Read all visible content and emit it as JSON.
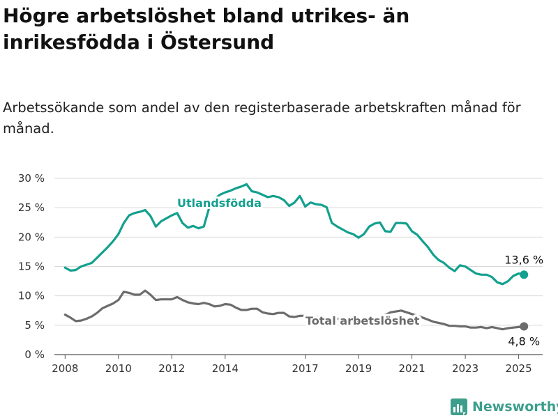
{
  "header": {
    "title": "Högre arbetslöshet bland utrikes- än inrikesfödda i Östersund",
    "subtitle": "Arbetssökande som andel av den registerbaserade arbetskraften månad för månad."
  },
  "brand": {
    "name": "Newsworthy",
    "icon": "newsworthy-logo-icon",
    "color": "#3d9e8c"
  },
  "chart_data": {
    "type": "line",
    "xlim": [
      2007.6,
      2025.9
    ],
    "ylim": [
      0,
      30
    ],
    "x_ticks": [
      2008,
      2010,
      2012,
      2014,
      2017,
      2019,
      2021,
      2023,
      2025
    ],
    "y_ticks": [
      {
        "value": 0,
        "label": "0 %"
      },
      {
        "value": 5,
        "label": "5 %"
      },
      {
        "value": 10,
        "label": "10 %"
      },
      {
        "value": 15,
        "label": "15 %"
      },
      {
        "value": 20,
        "label": "20 %"
      },
      {
        "value": 25,
        "label": "25 %"
      },
      {
        "value": 30,
        "label": "30 %"
      }
    ],
    "grid": "horizontal",
    "series": [
      {
        "name": "Utlandsfödda",
        "color": "#13a08e",
        "end_label": "13,6 %",
        "points": [
          [
            2008.0,
            14.8
          ],
          [
            2008.2,
            14.3
          ],
          [
            2008.4,
            14.4
          ],
          [
            2008.6,
            15.0
          ],
          [
            2008.8,
            15.3
          ],
          [
            2009.0,
            15.6
          ],
          [
            2009.2,
            16.5
          ],
          [
            2009.4,
            17.4
          ],
          [
            2009.6,
            18.3
          ],
          [
            2009.8,
            19.3
          ],
          [
            2010.0,
            20.5
          ],
          [
            2010.2,
            22.4
          ],
          [
            2010.4,
            23.7
          ],
          [
            2010.6,
            24.1
          ],
          [
            2010.8,
            24.3
          ],
          [
            2011.0,
            24.6
          ],
          [
            2011.2,
            23.6
          ],
          [
            2011.4,
            21.8
          ],
          [
            2011.6,
            22.7
          ],
          [
            2011.8,
            23.2
          ],
          [
            2012.0,
            23.7
          ],
          [
            2012.2,
            24.1
          ],
          [
            2012.4,
            22.4
          ],
          [
            2012.6,
            21.6
          ],
          [
            2012.8,
            21.9
          ],
          [
            2013.0,
            21.5
          ],
          [
            2013.2,
            21.8
          ],
          [
            2013.4,
            25.0
          ],
          [
            2013.6,
            26.5
          ],
          [
            2013.8,
            27.2
          ],
          [
            2014.0,
            27.6
          ],
          [
            2014.2,
            27.9
          ],
          [
            2014.4,
            28.3
          ],
          [
            2014.6,
            28.6
          ],
          [
            2014.8,
            29.0
          ],
          [
            2015.0,
            27.8
          ],
          [
            2015.2,
            27.6
          ],
          [
            2015.4,
            27.2
          ],
          [
            2015.6,
            26.8
          ],
          [
            2015.8,
            27.0
          ],
          [
            2016.0,
            26.8
          ],
          [
            2016.2,
            26.3
          ],
          [
            2016.4,
            25.3
          ],
          [
            2016.6,
            25.9
          ],
          [
            2016.8,
            27.0
          ],
          [
            2017.0,
            25.2
          ],
          [
            2017.2,
            25.9
          ],
          [
            2017.4,
            25.6
          ],
          [
            2017.6,
            25.5
          ],
          [
            2017.8,
            25.1
          ],
          [
            2018.0,
            22.4
          ],
          [
            2018.2,
            21.8
          ],
          [
            2018.4,
            21.3
          ],
          [
            2018.6,
            20.8
          ],
          [
            2018.8,
            20.5
          ],
          [
            2019.0,
            19.9
          ],
          [
            2019.2,
            20.5
          ],
          [
            2019.4,
            21.8
          ],
          [
            2019.6,
            22.3
          ],
          [
            2019.8,
            22.5
          ],
          [
            2020.0,
            21.0
          ],
          [
            2020.2,
            20.9
          ],
          [
            2020.4,
            22.4
          ],
          [
            2020.6,
            22.4
          ],
          [
            2020.8,
            22.3
          ],
          [
            2021.0,
            21.0
          ],
          [
            2021.2,
            20.4
          ],
          [
            2021.4,
            19.3
          ],
          [
            2021.6,
            18.3
          ],
          [
            2021.8,
            17.0
          ],
          [
            2022.0,
            16.1
          ],
          [
            2022.2,
            15.6
          ],
          [
            2022.4,
            14.8
          ],
          [
            2022.6,
            14.2
          ],
          [
            2022.8,
            15.2
          ],
          [
            2023.0,
            15.0
          ],
          [
            2023.2,
            14.4
          ],
          [
            2023.4,
            13.8
          ],
          [
            2023.6,
            13.6
          ],
          [
            2023.8,
            13.6
          ],
          [
            2024.0,
            13.2
          ],
          [
            2024.2,
            12.3
          ],
          [
            2024.4,
            12.0
          ],
          [
            2024.6,
            12.5
          ],
          [
            2024.8,
            13.4
          ],
          [
            2025.0,
            13.8
          ],
          [
            2025.2,
            13.6
          ]
        ]
      },
      {
        "name": "Total arbetslöshet",
        "color": "#6c6c6c",
        "end_label": "4,8 %",
        "points": [
          [
            2008.0,
            6.8
          ],
          [
            2008.2,
            6.3
          ],
          [
            2008.4,
            5.7
          ],
          [
            2008.6,
            5.8
          ],
          [
            2008.8,
            6.1
          ],
          [
            2009.0,
            6.5
          ],
          [
            2009.2,
            7.1
          ],
          [
            2009.4,
            7.9
          ],
          [
            2009.6,
            8.3
          ],
          [
            2009.8,
            8.7
          ],
          [
            2010.0,
            9.3
          ],
          [
            2010.2,
            10.7
          ],
          [
            2010.4,
            10.5
          ],
          [
            2010.6,
            10.2
          ],
          [
            2010.8,
            10.2
          ],
          [
            2011.0,
            10.9
          ],
          [
            2011.2,
            10.2
          ],
          [
            2011.4,
            9.3
          ],
          [
            2011.6,
            9.4
          ],
          [
            2011.8,
            9.4
          ],
          [
            2012.0,
            9.4
          ],
          [
            2012.2,
            9.8
          ],
          [
            2012.4,
            9.3
          ],
          [
            2012.6,
            8.9
          ],
          [
            2012.8,
            8.7
          ],
          [
            2013.0,
            8.6
          ],
          [
            2013.2,
            8.8
          ],
          [
            2013.4,
            8.6
          ],
          [
            2013.6,
            8.2
          ],
          [
            2013.8,
            8.3
          ],
          [
            2014.0,
            8.6
          ],
          [
            2014.2,
            8.5
          ],
          [
            2014.4,
            8.0
          ],
          [
            2014.6,
            7.6
          ],
          [
            2014.8,
            7.6
          ],
          [
            2015.0,
            7.8
          ],
          [
            2015.2,
            7.8
          ],
          [
            2015.4,
            7.2
          ],
          [
            2015.6,
            7.0
          ],
          [
            2015.8,
            6.9
          ],
          [
            2016.0,
            7.1
          ],
          [
            2016.2,
            7.1
          ],
          [
            2016.4,
            6.5
          ],
          [
            2016.6,
            6.4
          ],
          [
            2016.8,
            6.6
          ],
          [
            2017.0,
            6.6
          ],
          [
            2017.4,
            6.4
          ],
          [
            2017.8,
            6.3
          ],
          [
            2018.2,
            6.1
          ],
          [
            2018.6,
            6.0
          ],
          [
            2019.0,
            5.8
          ],
          [
            2019.4,
            5.9
          ],
          [
            2019.8,
            6.3
          ],
          [
            2020.2,
            7.2
          ],
          [
            2020.6,
            7.5
          ],
          [
            2021.0,
            6.9
          ],
          [
            2021.4,
            6.3
          ],
          [
            2021.8,
            5.6
          ],
          [
            2022.2,
            5.2
          ],
          [
            2022.4,
            4.9
          ],
          [
            2022.6,
            4.9
          ],
          [
            2022.8,
            4.8
          ],
          [
            2023.0,
            4.8
          ],
          [
            2023.2,
            4.6
          ],
          [
            2023.4,
            4.6
          ],
          [
            2023.6,
            4.7
          ],
          [
            2023.8,
            4.5
          ],
          [
            2024.0,
            4.7
          ],
          [
            2024.2,
            4.5
          ],
          [
            2024.4,
            4.3
          ],
          [
            2024.6,
            4.5
          ],
          [
            2024.8,
            4.6
          ],
          [
            2025.0,
            4.7
          ],
          [
            2025.2,
            4.8
          ]
        ]
      }
    ]
  }
}
